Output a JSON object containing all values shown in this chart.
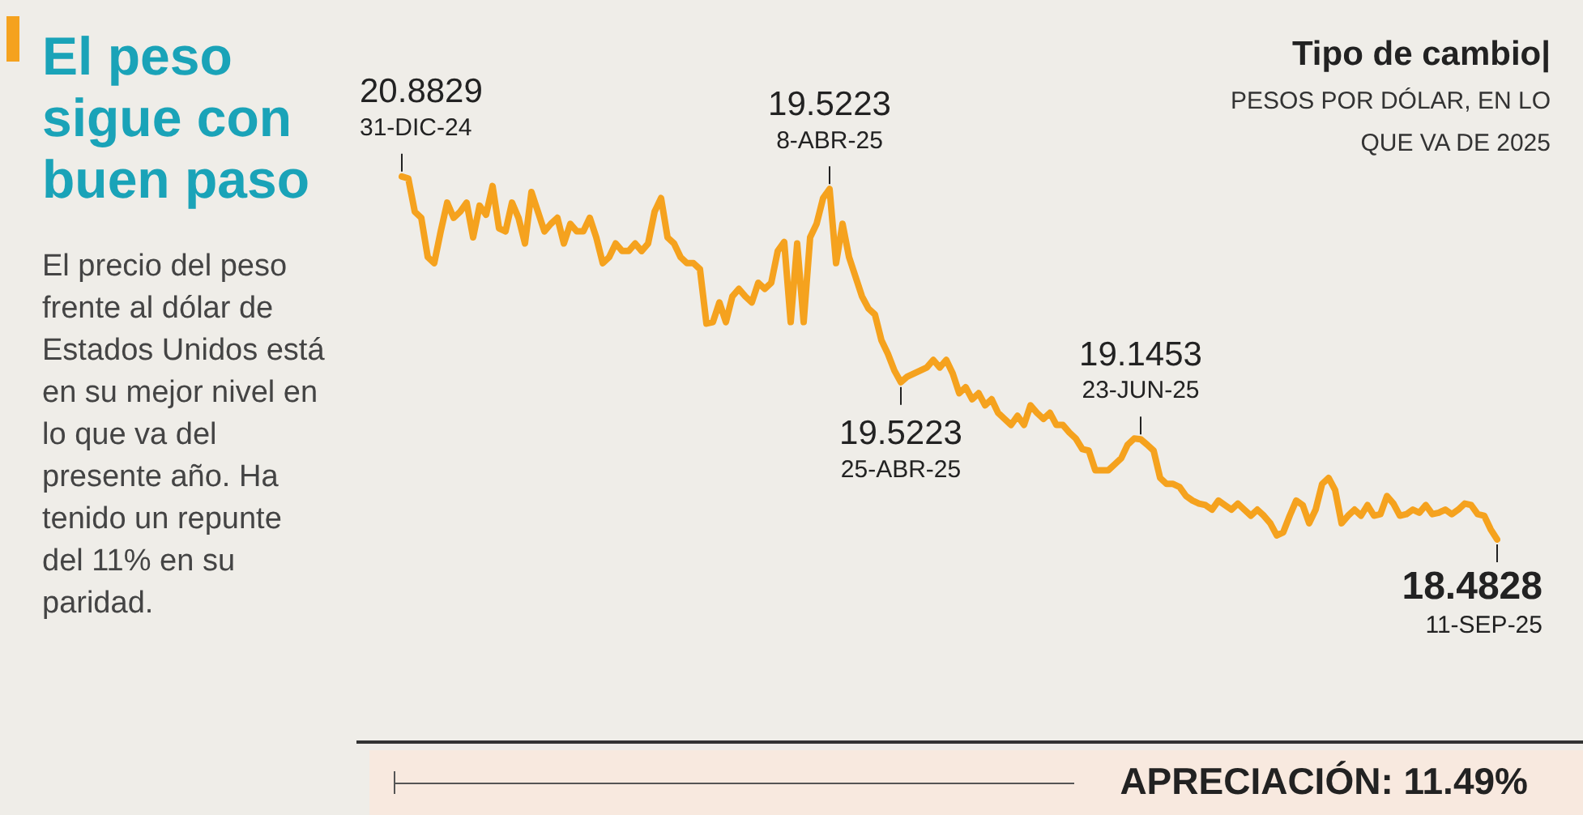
{
  "chart_data": {
    "type": "line",
    "title": "El peso sigue con buen paso",
    "subtitle": "El precio del peso frente al dólar de Estados Unidos está en su mejor nivel en lo que va del presente año. Ha tenido un repunte del 11% en su paridad.",
    "annotations": [
      "Tipo de cambio|",
      "PESOS POR DÓLAR, EN LO QUE VA DE 2025",
      "APRECIACIÓN: 11.49%",
      "31-DIC-24",
      "19.5223",
      "8-ABR-25",
      "25-ABR-25",
      "23-JUN-25",
      "11-SEP-25"
    ],
    "categories": [
      null,
      null,
      null,
      null,
      null,
      null,
      null,
      null,
      null,
      null,
      null,
      null,
      null,
      null,
      null,
      null,
      null,
      null,
      null,
      null,
      null,
      null,
      null,
      null,
      null,
      null,
      null,
      null,
      null,
      null,
      null,
      null,
      null,
      null,
      null,
      null,
      null,
      null,
      null,
      null,
      null,
      null,
      null,
      null,
      null,
      null,
      null,
      null,
      null,
      null,
      null,
      null,
      null,
      null,
      null,
      null,
      null,
      null,
      null,
      null,
      null,
      null,
      null,
      null,
      null,
      null,
      null,
      null,
      null,
      null,
      null,
      null,
      null,
      null,
      null,
      null,
      null,
      null,
      null,
      null,
      null,
      null,
      null,
      null,
      null,
      null,
      null,
      null,
      null,
      null,
      null,
      null,
      null,
      null,
      null,
      null,
      null,
      null,
      null,
      null,
      null,
      null,
      null,
      null,
      null,
      null,
      null,
      null,
      null,
      null,
      null,
      null,
      null,
      null,
      null,
      null,
      null,
      null,
      null,
      null,
      null,
      null,
      null,
      null,
      null,
      null,
      null,
      null,
      null,
      null,
      null,
      null,
      null,
      null,
      null,
      null,
      null,
      null,
      null,
      null,
      null,
      null,
      null,
      null,
      null,
      null,
      null,
      null,
      null,
      null,
      null,
      null,
      null,
      null,
      null,
      null,
      null,
      null,
      null,
      null,
      null,
      null,
      null,
      null,
      null,
      null,
      null,
      null,
      null,
      null
    ],
    "series": [
      {
        "color": "#f5a21e",
        "values": [
          20.8829,
          20.87,
          20.65,
          20.61,
          20.35,
          20.31,
          20.52,
          20.71,
          20.61,
          20.65,
          20.71,
          20.48,
          20.69,
          20.63,
          20.82,
          20.54,
          20.52,
          20.71,
          20.61,
          20.44,
          20.78,
          20.65,
          20.52,
          20.57,
          20.61,
          20.44,
          20.57,
          20.52,
          20.52,
          20.61,
          20.48,
          20.31,
          20.35,
          20.44,
          20.39,
          20.39,
          20.44,
          20.39,
          20.44,
          20.65,
          20.74,
          20.48,
          20.44,
          20.35,
          20.31,
          20.31,
          20.27,
          19.91,
          19.92,
          20.05,
          19.92,
          20.09,
          20.14,
          20.09,
          20.05,
          20.18,
          20.14,
          20.18,
          20.39,
          20.45,
          19.92,
          20.44,
          19.92,
          20.48,
          20.57,
          20.74,
          20.8,
          20.31,
          20.57,
          20.35,
          20.22,
          20.09,
          20.01,
          19.97,
          19.8,
          19.71,
          19.6,
          19.5223,
          19.56,
          19.58,
          19.6,
          19.62,
          19.67,
          19.62,
          19.67,
          19.58,
          19.45,
          19.49,
          19.41,
          19.45,
          19.37,
          19.41,
          19.32,
          19.28,
          19.24,
          19.3,
          19.24,
          19.37,
          19.32,
          19.28,
          19.32,
          19.24,
          19.24,
          19.19,
          19.15,
          19.08,
          19.07,
          18.94,
          18.94,
          18.94,
          18.98,
          19.02,
          19.11,
          19.15,
          19.1453,
          19.11,
          19.07,
          18.89,
          18.85,
          18.85,
          18.83,
          18.77,
          18.74,
          18.72,
          18.71,
          18.68,
          18.74,
          18.71,
          18.68,
          18.72,
          18.68,
          18.64,
          18.68,
          18.64,
          18.59,
          18.51,
          18.53,
          18.64,
          18.74,
          18.71,
          18.59,
          18.68,
          18.85,
          18.89,
          18.81,
          18.59,
          18.64,
          18.68,
          18.64,
          18.71,
          18.64,
          18.65,
          18.77,
          18.72,
          18.64,
          18.65,
          18.68,
          18.66,
          18.71,
          18.65,
          18.66,
          18.68,
          18.65,
          18.68,
          18.72,
          18.71,
          18.65,
          18.64,
          18.55,
          18.4828
        ],
        "value_labels": [
          "20.8829",
          null,
          null,
          null,
          null,
          null,
          null,
          null,
          null,
          null,
          null,
          null,
          null,
          null,
          null,
          null,
          null,
          null,
          null,
          null,
          null,
          null,
          null,
          null,
          null,
          null,
          null,
          null,
          null,
          null,
          null,
          null,
          null,
          null,
          null,
          null,
          null,
          null,
          null,
          null,
          null,
          null,
          null,
          null,
          null,
          null,
          null,
          null,
          null,
          null,
          null,
          null,
          null,
          null,
          null,
          null,
          null,
          null,
          null,
          null,
          null,
          null,
          null,
          null,
          null,
          null,
          null,
          null,
          null,
          null,
          null,
          null,
          null,
          null,
          null,
          null,
          null,
          "19.5223",
          null,
          null,
          null,
          null,
          null,
          null,
          null,
          null,
          null,
          null,
          null,
          null,
          null,
          null,
          null,
          null,
          null,
          null,
          null,
          null,
          null,
          null,
          null,
          null,
          null,
          null,
          null,
          null,
          null,
          null,
          null,
          null,
          null,
          null,
          null,
          null,
          "19.1453",
          null,
          null,
          null,
          null,
          null,
          null,
          null,
          null,
          null,
          null,
          null,
          null,
          null,
          null,
          null,
          null,
          null,
          null,
          null,
          null,
          null,
          null,
          null,
          null,
          null,
          null,
          null,
          null,
          null,
          null,
          null,
          null,
          null,
          null,
          null,
          null,
          null,
          null,
          null,
          null,
          null,
          null,
          null,
          null,
          null,
          null,
          null,
          null,
          null,
          null,
          null,
          null,
          null,
          null,
          "18.4828"
        ]
      }
    ],
    "legend": false,
    "marker": "none",
    "line_style": "solid"
  }
}
